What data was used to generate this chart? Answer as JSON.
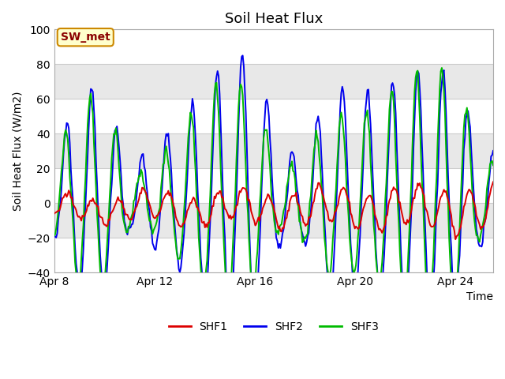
{
  "title": "Soil Heat Flux",
  "ylabel": "Soil Heat Flux (W/m2)",
  "xlabel": "Time",
  "ylim": [
    -40,
    100
  ],
  "yticks": [
    -40,
    -20,
    0,
    20,
    40,
    60,
    80,
    100
  ],
  "xtick_labels": [
    "Apr 8",
    "Apr 12",
    "Apr 16",
    "Apr 20",
    "Apr 24"
  ],
  "xtick_positions": [
    0,
    4,
    8,
    12,
    16
  ],
  "n_days": 17.5,
  "samples_per_day": 24,
  "shf1_color": "#dd0000",
  "shf2_color": "#0000ee",
  "shf3_color": "#00bb00",
  "bg_color": "#ffffff",
  "plot_bg_color": "#ffffff",
  "legend_label1": "SHF1",
  "legend_label2": "SHF2",
  "legend_label3": "SHF3",
  "annotation_text": "SW_met",
  "annotation_bg": "#ffffcc",
  "annotation_border": "#cc8800",
  "annotation_text_color": "#8b0000",
  "hband_colors": [
    "#ffffff",
    "#e8e8e8"
  ],
  "hband_edges": [
    -40,
    -20,
    0,
    20,
    40,
    60,
    80,
    100
  ],
  "title_fontsize": 13,
  "axis_fontsize": 10,
  "tick_fontsize": 10,
  "linewidth": 1.4,
  "seed": 12345
}
